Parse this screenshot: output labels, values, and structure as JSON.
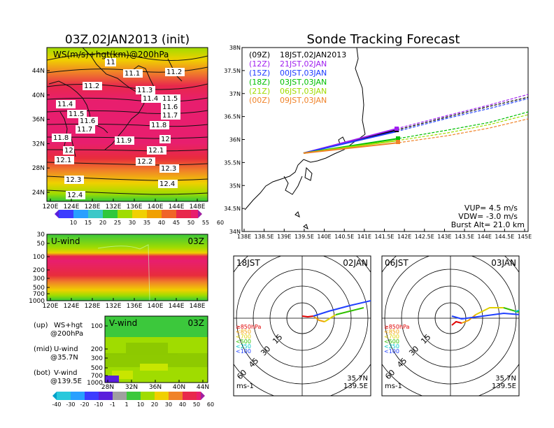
{
  "main_title": "Sonde Tracking Forecast",
  "init_title": "03Z,02JAN2013 (init)",
  "map200": {
    "label": "WS(m/s)+hgt(km)@200hPa",
    "lat_ticks": [
      "24N",
      "28N",
      "32N",
      "36N",
      "40N",
      "44N"
    ],
    "lon_ticks": [
      "120E",
      "124E",
      "128E",
      "132E",
      "136E",
      "140E",
      "144E",
      "148E"
    ],
    "hgt_labels": [
      "11",
      "11.1",
      "11.2",
      "11.2",
      "11.3",
      "11.4",
      "11.5",
      "11.4",
      "11.5",
      "11.6",
      "11.6",
      "11.7",
      "11.7",
      "11.8",
      "11.8",
      "11.9",
      "12",
      "12",
      "12.1",
      "12.1",
      "12.2",
      "12.3",
      "12.3",
      "12.4",
      "12.4"
    ],
    "colorbar": [
      "10",
      "15",
      "20",
      "25",
      "30",
      "35",
      "40",
      "45",
      "50",
      "55",
      "60"
    ]
  },
  "uwind": {
    "label": "U-wind",
    "time": "03Z",
    "p_ticks": [
      "30",
      "50",
      "100",
      "200",
      "300",
      "500",
      "700",
      "1000"
    ],
    "lon_ticks": [
      "120E",
      "124E",
      "128E",
      "132E",
      "136E",
      "140E",
      "144E",
      "148E"
    ]
  },
  "vwind": {
    "label": "V-wind",
    "time": "03Z",
    "p_ticks": [
      "100",
      "200",
      "300",
      "500",
      "700",
      "1000"
    ],
    "lat_ticks": [
      "28N",
      "32N",
      "36N",
      "40N",
      "44N"
    ],
    "colorbar": [
      "-40",
      "-30",
      "-20",
      "-10",
      "-1",
      "1",
      "10",
      "20",
      "30",
      "40",
      "50",
      "60"
    ]
  },
  "panel_legend": [
    {
      "k": "(up)",
      "a": "WS+hgt",
      "b": "@200hPa"
    },
    {
      "k": "(mid)",
      "a": "U-wind",
      "b": "@35.7N"
    },
    {
      "k": "(bot)",
      "a": "V-wind",
      "b": "@139.5E"
    }
  ],
  "track_map": {
    "lat_ticks": [
      "34N",
      "34.5N",
      "35N",
      "35.5N",
      "36N",
      "36.5N",
      "37N",
      "37.5N",
      "38N"
    ],
    "lon_ticks": [
      "138E",
      "138.5E",
      "139E",
      "139.5E",
      "140E",
      "140.5E",
      "141E",
      "141.5E",
      "142E",
      "142.5E",
      "143E",
      "143.5E",
      "144E",
      "144.5E",
      "145E"
    ],
    "legend": [
      {
        "run": "(09Z)",
        "valid": "18JST,02JAN2013",
        "color": "#000000"
      },
      {
        "run": "(12Z)",
        "valid": "21JST,02JAN",
        "color": "#a020f0"
      },
      {
        "run": "(15Z)",
        "valid": "00JST,03JAN",
        "color": "#1e3cff"
      },
      {
        "run": "(18Z)",
        "valid": "03JST,03JAN",
        "color": "#00c000"
      },
      {
        "run": "(21Z)",
        "valid": "06JST,03JAN",
        "color": "#a0dc00"
      },
      {
        "run": "(00Z)",
        "valid": "09JST,03JAN",
        "color": "#f08228"
      }
    ],
    "params": [
      "VUP= 4.5 m/s",
      "VDW= -3.0 m/s",
      "Burst Alt= 21.0 km"
    ]
  },
  "hodo_left": {
    "time": "18JST",
    "date": "02JAN",
    "lat": "35.7N",
    "lon": "139.5E",
    "unit": "ms-1",
    "rings": [
      "15",
      "30",
      "45",
      "60"
    ]
  },
  "hodo_right": {
    "time": "06JST",
    "date": "03JAN",
    "lat": "35.7N",
    "lon": "139.5E",
    "unit": "ms-1",
    "rings": [
      "15",
      "30",
      "45",
      "60"
    ]
  },
  "hodo_levels": [
    {
      "t": "≥850hPa",
      "c": "#e00000"
    },
    {
      "t": "<850",
      "c": "#f0a000"
    },
    {
      "t": "<700",
      "c": "#e0d000"
    },
    {
      "t": "<500",
      "c": "#30c000"
    },
    {
      "t": "<250",
      "c": "#00c8c8"
    },
    {
      "t": "<100",
      "c": "#2040ff"
    }
  ]
}
